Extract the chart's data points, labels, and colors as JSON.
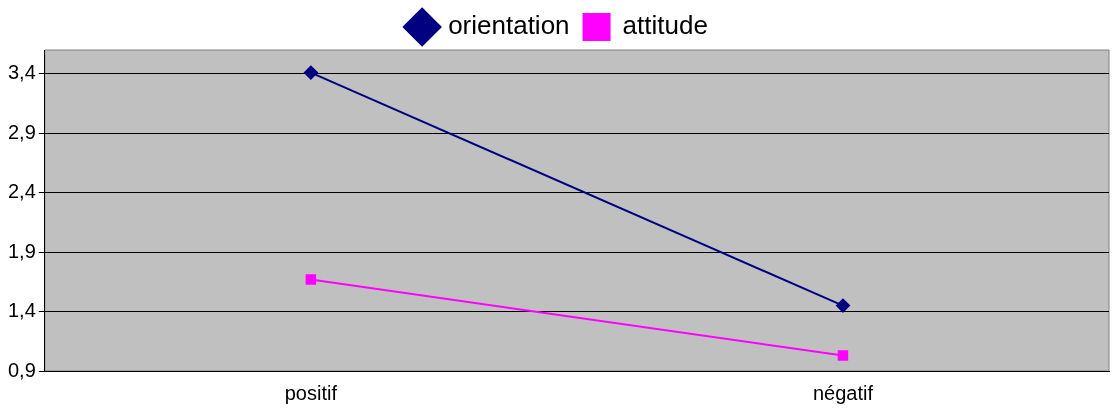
{
  "chart_data": {
    "type": "line",
    "categories": [
      "positif",
      "négatif"
    ],
    "series": [
      {
        "name": "orientation",
        "color": "#000080",
        "marker": "diamond",
        "values": [
          3.41,
          1.45
        ]
      },
      {
        "name": "attitude",
        "color": "#ff00ff",
        "marker": "square",
        "values": [
          1.67,
          1.03
        ]
      }
    ],
    "ylim": [
      0.9,
      3.6
    ],
    "yticks": [
      {
        "value": 0.9,
        "label": "0,9"
      },
      {
        "value": 1.4,
        "label": "1,4"
      },
      {
        "value": 1.9,
        "label": "1,9"
      },
      {
        "value": 2.4,
        "label": "2,4"
      },
      {
        "value": 2.9,
        "label": "2,9"
      },
      {
        "value": 3.4,
        "label": "3,4"
      }
    ],
    "grid": "y",
    "legend": "top",
    "line_style": "solid"
  }
}
